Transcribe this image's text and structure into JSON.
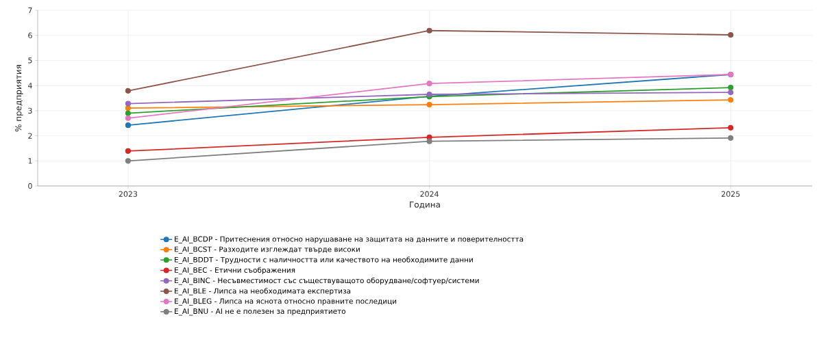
{
  "chart_data": {
    "type": "line",
    "xlabel": "Година",
    "ylabel": "% предприятия",
    "x": [
      2023,
      2024,
      2025
    ],
    "xlim": [
      2022.7,
      2025.27
    ],
    "xticks": [
      2023,
      2024,
      2025
    ],
    "ylim": [
      0,
      7
    ],
    "yticks": [
      0,
      1,
      2,
      3,
      4,
      5,
      6,
      7
    ],
    "grid": true,
    "legend": "bottom",
    "marker": "circle",
    "line_style": "solid",
    "series": [
      {
        "name": "E_AI_BCDP - Притеснения относно нарушаване на защитата на данните и поверителността",
        "color": "#1f77b4",
        "values": [
          2.42,
          3.57,
          4.44
        ]
      },
      {
        "name": "E_AI_BCST - Разходите изглеждат твърде високи",
        "color": "#ff7f0e",
        "values": [
          3.1,
          3.24,
          3.43
        ]
      },
      {
        "name": "E_AI_BDDT - Трудности с наличността или качеството на необходимите данни",
        "color": "#2ca02c",
        "values": [
          2.9,
          3.56,
          3.92
        ]
      },
      {
        "name": "E_AI_BEC - Етични съображения",
        "color": "#d62728",
        "values": [
          1.39,
          1.94,
          2.32
        ]
      },
      {
        "name": "E_AI_BINC - Несъвместимост със съществуващото оборудване/софтуер/системи",
        "color": "#9467bd",
        "values": [
          3.28,
          3.65,
          3.73
        ]
      },
      {
        "name": "E_AI_BLE - Липса на необходимата експертиза",
        "color": "#8c564b",
        "values": [
          3.79,
          6.19,
          6.02
        ]
      },
      {
        "name": "E_AI_BLEG - Липса на яснота относно правните последици",
        "color": "#e377c2",
        "values": [
          2.7,
          4.08,
          4.44
        ]
      },
      {
        "name": "E_AI_BNU - AI не е полезен за предприятието",
        "color": "#7f7f7f",
        "values": [
          1.0,
          1.78,
          1.91
        ]
      }
    ]
  }
}
